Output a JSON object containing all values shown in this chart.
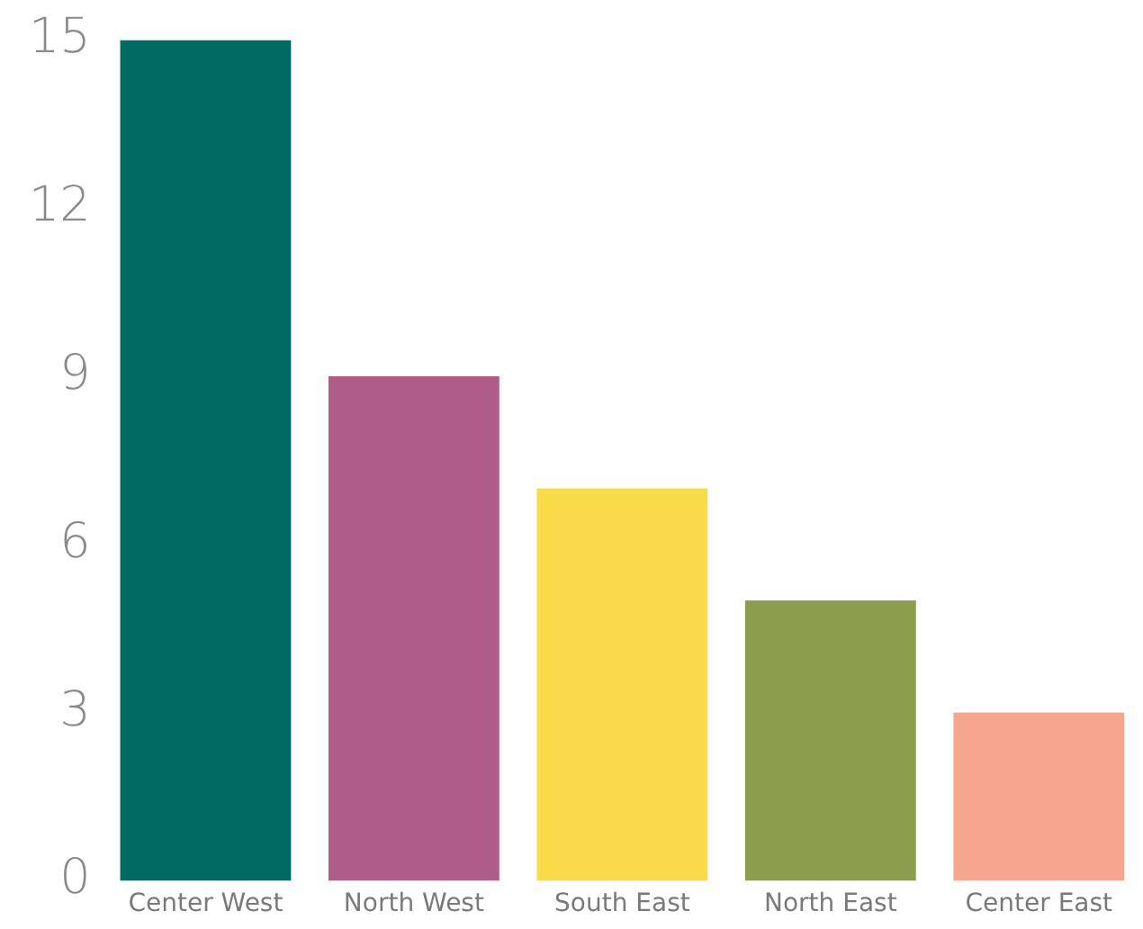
{
  "chart_data": {
    "type": "bar",
    "categories": [
      "Center West",
      "North West",
      "South East",
      "North East",
      "Center East"
    ],
    "values": [
      15,
      9,
      7,
      5,
      3
    ],
    "colors": [
      "#006a63",
      "#b05c8a",
      "#f9db4a",
      "#8c9e4b",
      "#f6a68f"
    ],
    "ylim": [
      0,
      15
    ],
    "yticks": [
      0,
      3,
      6,
      9,
      12,
      15
    ],
    "grid": false,
    "legend": false
  }
}
